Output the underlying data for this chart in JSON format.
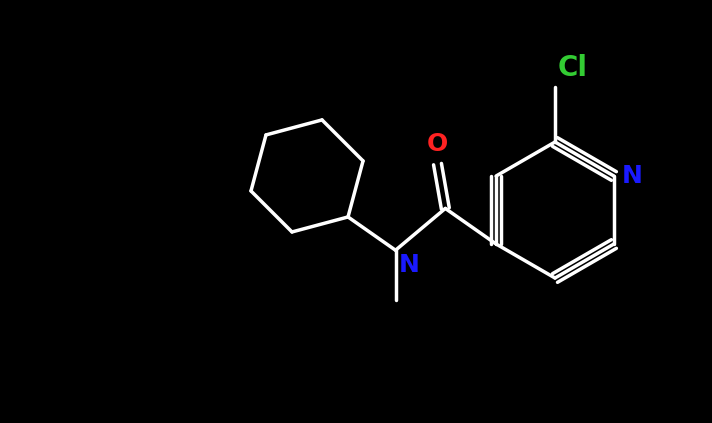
{
  "background_color": "#000000",
  "bond_color": "#ffffff",
  "bond_width": 2.5,
  "atom_colors": {
    "N_amide": "#1a1aff",
    "N_pyridine": "#1a1aff",
    "O": "#ff2222",
    "Cl": "#33cc33",
    "C": "#ffffff"
  },
  "font_size_heteroatom": 18,
  "font_size_Cl": 20
}
